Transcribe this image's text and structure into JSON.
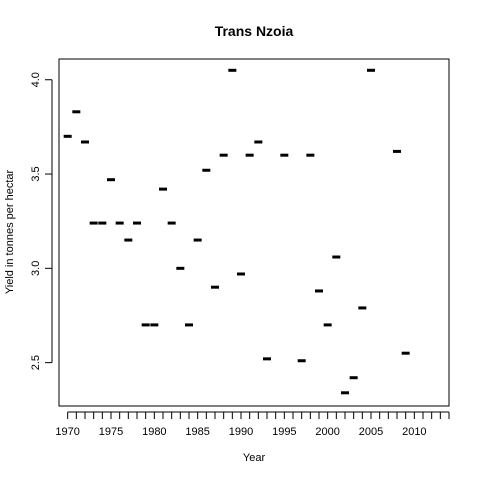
{
  "chart_data": {
    "type": "scatter",
    "marker": "dash",
    "title": "Trans Nzoia",
    "xlabel": "Year",
    "ylabel": "Yield in tonnes per hectar",
    "xlim": [
      1969,
      2014
    ],
    "ylim": [
      2.27,
      4.11
    ],
    "x_ticks": [
      1970,
      1971,
      1972,
      1973,
      1974,
      1975,
      1976,
      1977,
      1978,
      1979,
      1980,
      1981,
      1982,
      1983,
      1984,
      1985,
      1986,
      1987,
      1988,
      1989,
      1990,
      1991,
      1992,
      1993,
      1994,
      1995,
      1996,
      1997,
      1998,
      1999,
      2000,
      2001,
      2002,
      2003,
      2004,
      2005,
      2006,
      2007,
      2008,
      2009,
      2010,
      2011,
      2012,
      2013,
      2014
    ],
    "x_tick_labels": [
      {
        "value": 1970,
        "label": "1970"
      },
      {
        "value": 1975,
        "label": "1975"
      },
      {
        "value": 1980,
        "label": "1980"
      },
      {
        "value": 1985,
        "label": "1985"
      },
      {
        "value": 1990,
        "label": "1990"
      },
      {
        "value": 1995,
        "label": "1995"
      },
      {
        "value": 2000,
        "label": "2000"
      },
      {
        "value": 2005,
        "label": "2005"
      },
      {
        "value": 2010,
        "label": "2010"
      }
    ],
    "y_ticks": [
      {
        "value": 2.5,
        "label": "2.5"
      },
      {
        "value": 3.0,
        "label": "3.0"
      },
      {
        "value": 3.5,
        "label": "3.5"
      },
      {
        "value": 4.0,
        "label": "4.0"
      }
    ],
    "points": [
      {
        "x": 1970,
        "y": 3.7
      },
      {
        "x": 1971,
        "y": 3.83
      },
      {
        "x": 1972,
        "y": 3.67
      },
      {
        "x": 1973,
        "y": 3.24
      },
      {
        "x": 1974,
        "y": 3.24
      },
      {
        "x": 1975,
        "y": 3.47
      },
      {
        "x": 1976,
        "y": 3.24
      },
      {
        "x": 1977,
        "y": 3.15
      },
      {
        "x": 1978,
        "y": 3.24
      },
      {
        "x": 1979,
        "y": 2.7
      },
      {
        "x": 1980,
        "y": 2.7
      },
      {
        "x": 1981,
        "y": 3.42
      },
      {
        "x": 1982,
        "y": 3.24
      },
      {
        "x": 1983,
        "y": 3.0
      },
      {
        "x": 1984,
        "y": 2.7
      },
      {
        "x": 1985,
        "y": 3.15
      },
      {
        "x": 1986,
        "y": 3.52
      },
      {
        "x": 1987,
        "y": 2.9
      },
      {
        "x": 1988,
        "y": 3.6
      },
      {
        "x": 1989,
        "y": 4.05
      },
      {
        "x": 1990,
        "y": 2.97
      },
      {
        "x": 1991,
        "y": 3.6
      },
      {
        "x": 1992,
        "y": 3.67
      },
      {
        "x": 1993,
        "y": 2.52
      },
      {
        "x": 1995,
        "y": 3.6
      },
      {
        "x": 1997,
        "y": 2.51
      },
      {
        "x": 1998,
        "y": 3.6
      },
      {
        "x": 1999,
        "y": 2.88
      },
      {
        "x": 2000,
        "y": 2.7
      },
      {
        "x": 2001,
        "y": 3.06
      },
      {
        "x": 2002,
        "y": 2.34
      },
      {
        "x": 2003,
        "y": 2.42
      },
      {
        "x": 2004,
        "y": 2.79
      },
      {
        "x": 2005,
        "y": 4.05
      },
      {
        "x": 2008,
        "y": 3.62
      },
      {
        "x": 2009,
        "y": 2.55
      }
    ],
    "grid": false,
    "legend": "none"
  }
}
